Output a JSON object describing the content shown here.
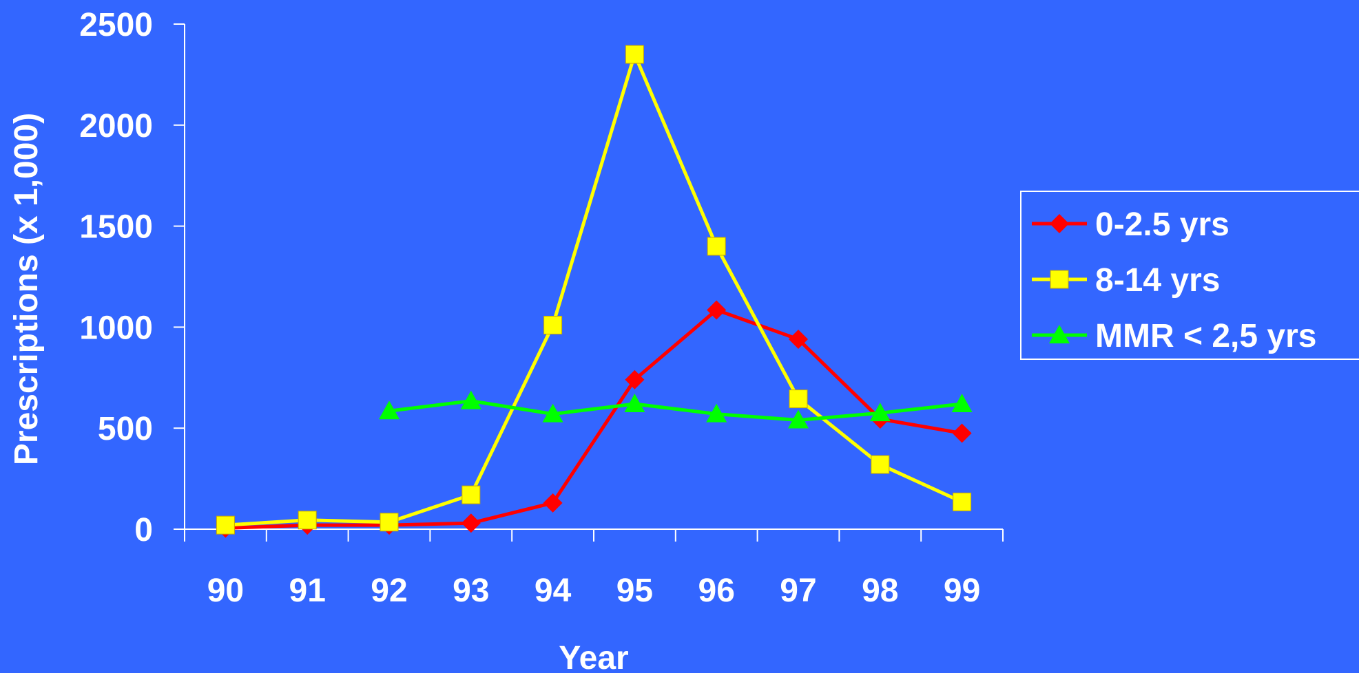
{
  "colors": {
    "background": "#3366FF",
    "axis": "#FFFFFF",
    "text": "#FFFFFF"
  },
  "chart_data": {
    "type": "line",
    "title": "",
    "xlabel": "Year",
    "ylabel": "Prescriptions (x 1,000)",
    "categories": [
      "90",
      "91",
      "92",
      "93",
      "94",
      "95",
      "96",
      "97",
      "98",
      "99"
    ],
    "ylim": [
      0,
      2500
    ],
    "yticks": [
      "0",
      "500",
      "1000",
      "1500",
      "2000",
      "2500"
    ],
    "grid": false,
    "legend_position": "right",
    "series": [
      {
        "name": "0-2.5 yrs",
        "color": "#FF0000",
        "marker": "diamond",
        "values": [
          5,
          20,
          20,
          30,
          130,
          740,
          1085,
          940,
          545,
          475
        ]
      },
      {
        "name": "8-14 yrs",
        "color": "#FFFF00",
        "marker": "square",
        "values": [
          20,
          45,
          35,
          170,
          1010,
          2350,
          1400,
          645,
          320,
          135
        ]
      },
      {
        "name": "MMR < 2,5 yrs",
        "color": "#00FF00",
        "marker": "triangle",
        "values": [
          null,
          null,
          585,
          635,
          570,
          620,
          570,
          540,
          575,
          620
        ]
      }
    ]
  }
}
